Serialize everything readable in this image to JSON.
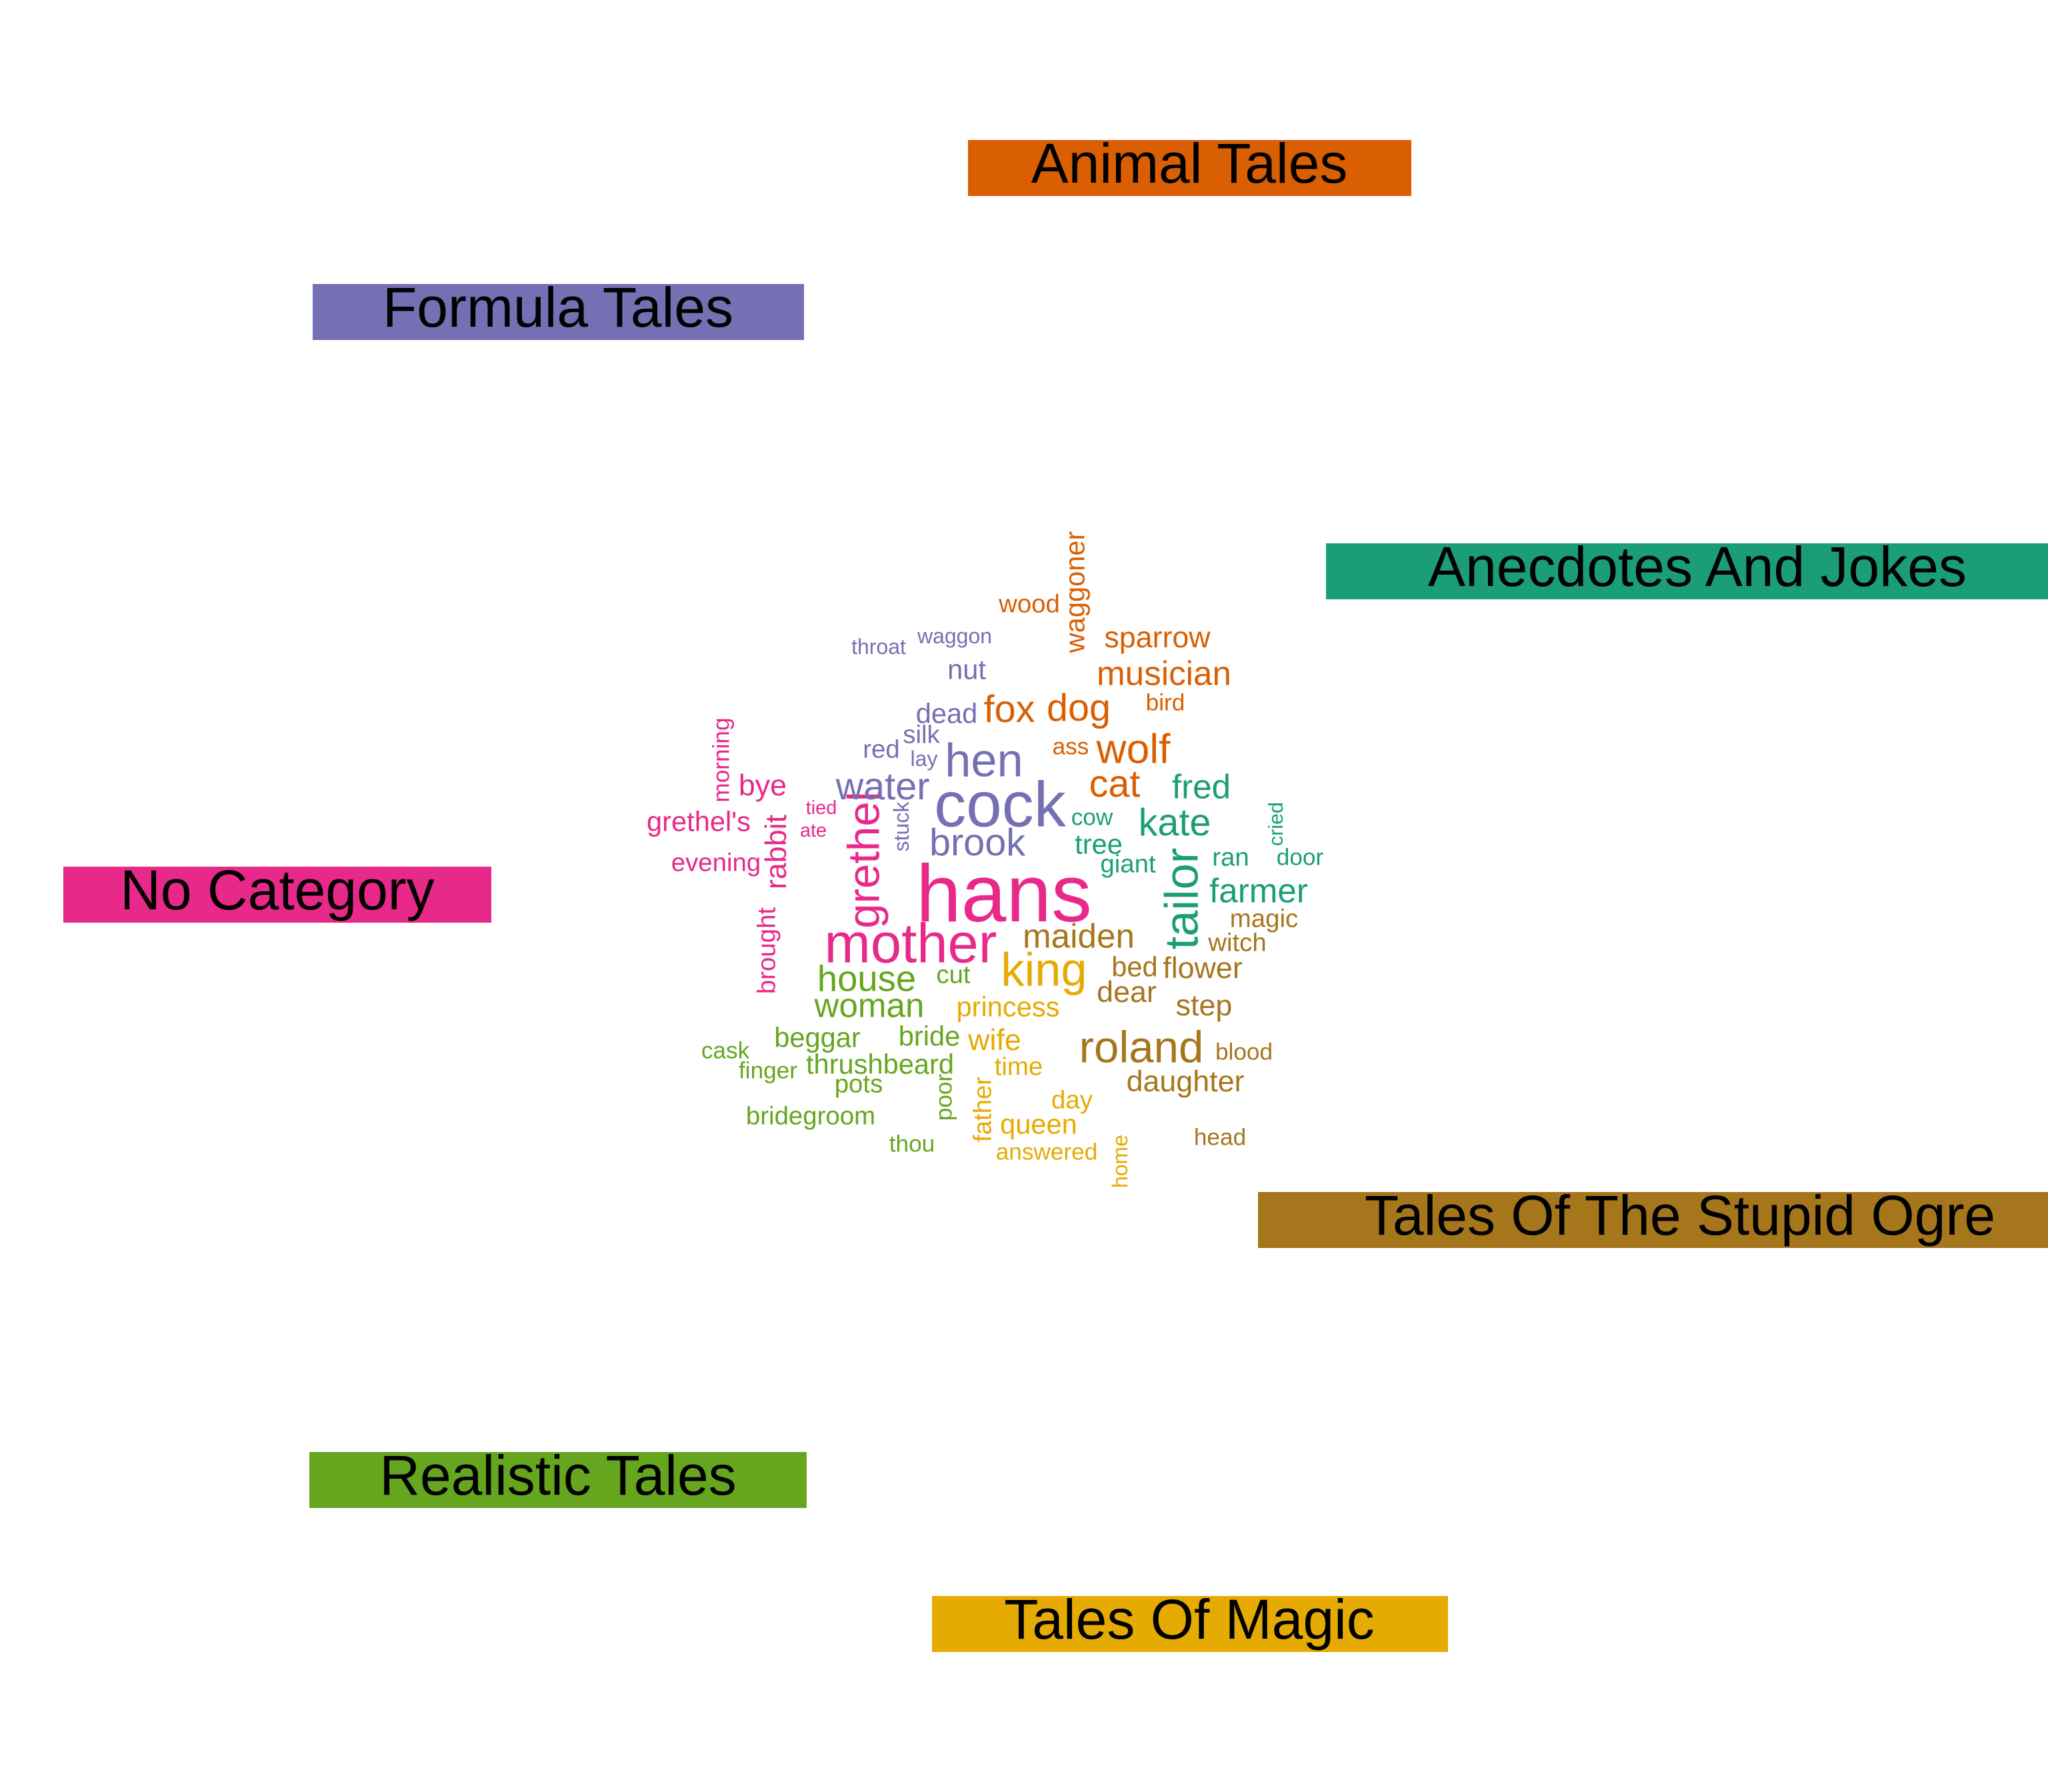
{
  "chart_data": {
    "type": "comparison_wordcloud",
    "categories": [
      {
        "key": "animal",
        "name": "Animal Tales",
        "color": "#D95F02"
      },
      {
        "key": "formula",
        "name": "Formula Tales",
        "color": "#7570B3"
      },
      {
        "key": "anecdotes",
        "name": "Anecdotes And Jokes",
        "color": "#1B9E77"
      },
      {
        "key": "nocat",
        "name": "No Category",
        "color": "#E7298A"
      },
      {
        "key": "ogre",
        "name": "Tales Of The Stupid Ogre",
        "color": "#A6761D"
      },
      {
        "key": "realistic",
        "name": "Realistic Tales",
        "color": "#66A61E"
      },
      {
        "key": "magic",
        "name": "Tales Of Magic",
        "color": "#E6AB02"
      }
    ],
    "words": [
      {
        "text": "hans",
        "category": "nocat",
        "weight": 7.6
      },
      {
        "text": "cock",
        "category": "formula",
        "weight": 6.0
      },
      {
        "text": "mother",
        "category": "nocat",
        "weight": 5.2
      },
      {
        "text": "tailor",
        "category": "anecdotes",
        "weight": 4.4
      },
      {
        "text": "hen",
        "category": "formula",
        "weight": 4.4
      },
      {
        "text": "king",
        "category": "magic",
        "weight": 4.4
      },
      {
        "text": "grethel",
        "category": "nocat",
        "weight": 4.2
      },
      {
        "text": "roland",
        "category": "ogre",
        "weight": 4.2
      },
      {
        "text": "wolf",
        "category": "animal",
        "weight": 3.9
      },
      {
        "text": "fox",
        "category": "animal",
        "weight": 3.6
      },
      {
        "text": "dog",
        "category": "animal",
        "weight": 3.6
      },
      {
        "text": "brook",
        "category": "formula",
        "weight": 3.6
      },
      {
        "text": "water",
        "category": "formula",
        "weight": 3.6
      },
      {
        "text": "kate",
        "category": "anecdotes",
        "weight": 3.6
      },
      {
        "text": "cat",
        "category": "animal",
        "weight": 3.6
      },
      {
        "text": "house",
        "category": "realistic",
        "weight": 3.4
      },
      {
        "text": "maiden",
        "category": "ogre",
        "weight": 3.2
      },
      {
        "text": "musician",
        "category": "animal",
        "weight": 3.2
      },
      {
        "text": "farmer",
        "category": "anecdotes",
        "weight": 3.2
      },
      {
        "text": "woman",
        "category": "realistic",
        "weight": 3.2
      },
      {
        "text": "fred",
        "category": "anecdotes",
        "weight": 3.2
      },
      {
        "text": "bye",
        "category": "nocat",
        "weight": 2.8
      },
      {
        "text": "rabbit",
        "category": "nocat",
        "weight": 2.8
      },
      {
        "text": "sparrow",
        "category": "animal",
        "weight": 2.8
      },
      {
        "text": "daughter",
        "category": "ogre",
        "weight": 2.8
      },
      {
        "text": "wife",
        "category": "magic",
        "weight": 2.8
      },
      {
        "text": "dear",
        "category": "ogre",
        "weight": 2.8
      },
      {
        "text": "flower",
        "category": "ogre",
        "weight": 2.8
      },
      {
        "text": "step",
        "category": "ogre",
        "weight": 2.8
      },
      {
        "text": "grethel's",
        "category": "nocat",
        "weight": 2.6
      },
      {
        "text": "nut",
        "category": "formula",
        "weight": 2.6
      },
      {
        "text": "dead",
        "category": "formula",
        "weight": 2.6
      },
      {
        "text": "princess",
        "category": "magic",
        "weight": 2.6
      },
      {
        "text": "queen",
        "category": "magic",
        "weight": 2.6
      },
      {
        "text": "waggoner",
        "category": "animal",
        "weight": 2.6
      },
      {
        "text": "bride",
        "category": "realistic",
        "weight": 2.6
      },
      {
        "text": "beggar",
        "category": "realistic",
        "weight": 2.6
      },
      {
        "text": "tree",
        "category": "anecdotes",
        "weight": 2.6
      },
      {
        "text": "thrushbeard",
        "category": "realistic",
        "weight": 2.6
      },
      {
        "text": "bed",
        "category": "ogre",
        "weight": 2.6
      },
      {
        "text": "wood",
        "category": "animal",
        "weight": 2.4
      },
      {
        "text": "silk",
        "category": "formula",
        "weight": 2.4
      },
      {
        "text": "red",
        "category": "formula",
        "weight": 2.4
      },
      {
        "text": "evening",
        "category": "nocat",
        "weight": 2.4
      },
      {
        "text": "brought",
        "category": "nocat",
        "weight": 2.4
      },
      {
        "text": "cut",
        "category": "realistic",
        "weight": 2.4
      },
      {
        "text": "ran",
        "category": "anecdotes",
        "weight": 2.4
      },
      {
        "text": "giant",
        "category": "anecdotes",
        "weight": 2.4
      },
      {
        "text": "magic",
        "category": "ogre",
        "weight": 2.4
      },
      {
        "text": "witch",
        "category": "ogre",
        "weight": 2.4
      },
      {
        "text": "time",
        "category": "magic",
        "weight": 2.4
      },
      {
        "text": "day",
        "category": "magic",
        "weight": 2.4
      },
      {
        "text": "father",
        "category": "magic",
        "weight": 2.4
      },
      {
        "text": "pots",
        "category": "realistic",
        "weight": 2.4
      },
      {
        "text": "bridegroom",
        "category": "realistic",
        "weight": 2.4
      },
      {
        "text": "answered",
        "category": "magic",
        "weight": 2.2
      },
      {
        "text": "bird",
        "category": "animal",
        "weight": 2.2
      },
      {
        "text": "ass",
        "category": "animal",
        "weight": 2.2
      },
      {
        "text": "cow",
        "category": "anecdotes",
        "weight": 2.2
      },
      {
        "text": "door",
        "category": "anecdotes",
        "weight": 2.2
      },
      {
        "text": "finger",
        "category": "realistic",
        "weight": 2.2
      },
      {
        "text": "cask",
        "category": "realistic",
        "weight": 2.2
      },
      {
        "text": "thou",
        "category": "realistic",
        "weight": 2.2
      },
      {
        "text": "poor",
        "category": "realistic",
        "weight": 2.2
      },
      {
        "text": "blood",
        "category": "ogre",
        "weight": 2.2
      },
      {
        "text": "head",
        "category": "ogre",
        "weight": 2.2
      },
      {
        "text": "morning",
        "category": "nocat",
        "weight": 2.2
      },
      {
        "text": "throat",
        "category": "formula",
        "weight": 2.0
      },
      {
        "text": "waggon",
        "category": "formula",
        "weight": 2.0
      },
      {
        "text": "lay",
        "category": "formula",
        "weight": 2.0
      },
      {
        "text": "stuck",
        "category": "formula",
        "weight": 2.0
      },
      {
        "text": "home",
        "category": "magic",
        "weight": 2.0
      },
      {
        "text": "cried",
        "category": "anecdotes",
        "weight": 1.9
      },
      {
        "text": "tied",
        "category": "nocat",
        "weight": 1.8
      },
      {
        "text": "ate",
        "category": "nocat",
        "weight": 1.8
      }
    ]
  }
}
